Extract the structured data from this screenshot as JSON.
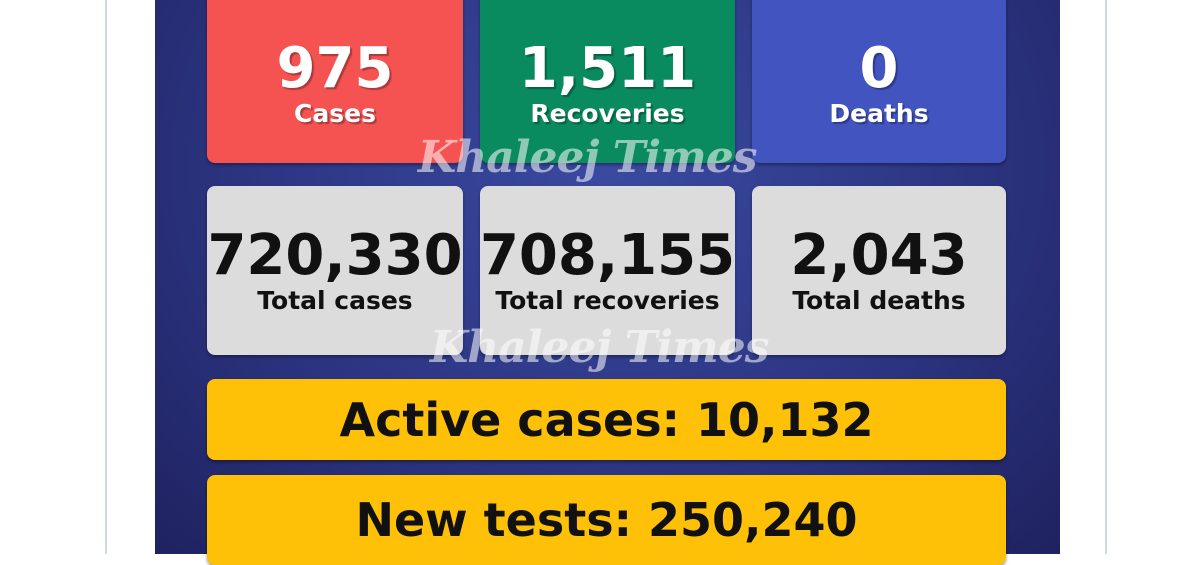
{
  "daily": [
    {
      "value": "975",
      "label": "Cases",
      "color": "#f55252"
    },
    {
      "value": "1,511",
      "label": "Recoveries",
      "color": "#0a8a5f"
    },
    {
      "value": "0",
      "label": "Deaths",
      "color": "#4254c0"
    }
  ],
  "totals": [
    {
      "value": "720,330",
      "label": "Total cases"
    },
    {
      "value": "708,155",
      "label": "Total recoveries"
    },
    {
      "value": "2,043",
      "label": "Total deaths"
    }
  ],
  "active_cases": "Active cases: 10,132",
  "new_tests": "New tests: 250,240",
  "watermark": "Khaleej Times"
}
